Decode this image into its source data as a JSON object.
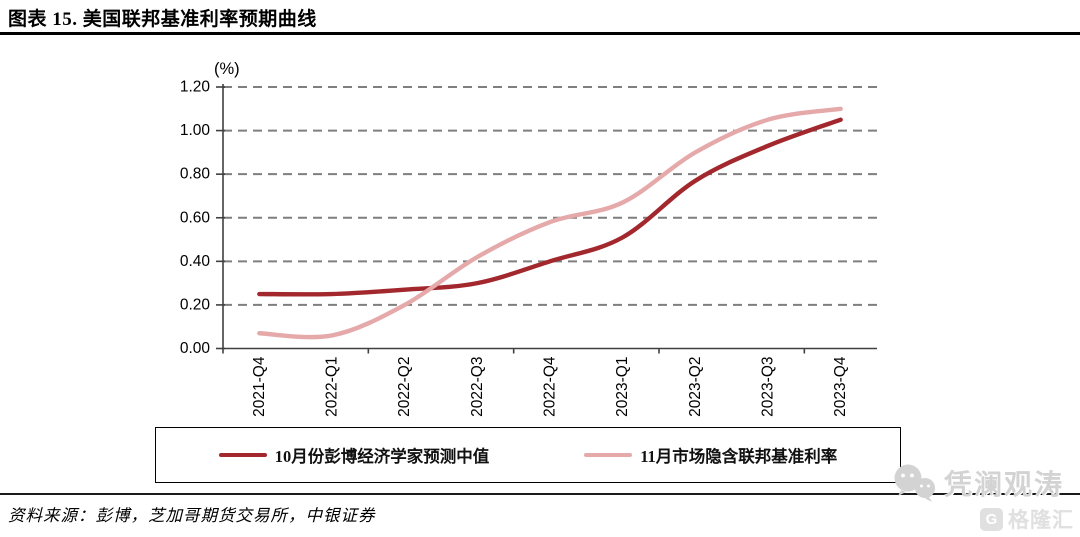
{
  "header": {
    "title": "图表 15. 美国联邦基准利率预期曲线"
  },
  "chart_data": {
    "type": "line",
    "unit_label": "(%)",
    "title": "美国联邦基准利率预期曲线",
    "categories": [
      "2021-Q4",
      "2022-Q1",
      "2022-Q2",
      "2022-Q3",
      "2022-Q4",
      "2023-Q1",
      "2023-Q2",
      "2023-Q3",
      "2023-Q4"
    ],
    "series": [
      {
        "name": "10月份彭博经济学家预测中值",
        "color": "#A2282E",
        "values": [
          0.25,
          0.25,
          0.27,
          0.3,
          0.4,
          0.51,
          0.77,
          0.93,
          1.05
        ]
      },
      {
        "name": "11月市场隐含联邦基准利率",
        "color": "#E5A9AA",
        "values": [
          0.07,
          0.06,
          0.2,
          0.42,
          0.58,
          0.67,
          0.9,
          1.05,
          1.1
        ]
      }
    ],
    "ylim": [
      0,
      1.2
    ],
    "ytick_step": 0.2,
    "ytick_labels": [
      "0.00",
      "0.20",
      "0.40",
      "0.60",
      "0.80",
      "1.00",
      "1.20"
    ],
    "grid": "horizontal-dashed",
    "grid_color": "#7f7f7f",
    "axis_color": "#404040",
    "legend_position": "bottom-boxed"
  },
  "footer": {
    "source": "资料来源：彭博，芝加哥期货交易所，中银证券"
  },
  "watermarks": {
    "wechat_name": "凭澜观涛",
    "site_logo_letter": "G",
    "site_logo_text": "格隆汇"
  }
}
